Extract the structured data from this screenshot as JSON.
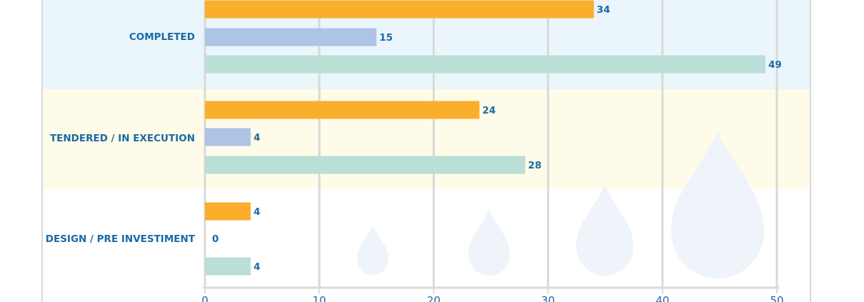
{
  "chart_data": {
    "type": "bar",
    "orientation": "horizontal",
    "categories": [
      "COMPLETED",
      "TENDERED / IN EXECUTION",
      "DESIGN / PRE INVESTIMENT"
    ],
    "series": [
      {
        "values": [
          34,
          24,
          4
        ],
        "color": "#fbae2c"
      },
      {
        "values": [
          15,
          4,
          0
        ],
        "color": "#aec4e5"
      },
      {
        "values": [
          49,
          28,
          4
        ],
        "color": "#b9dfd6"
      }
    ],
    "xlim": [
      0,
      50
    ],
    "xticks": [
      0,
      10,
      20,
      30,
      40,
      50
    ],
    "grid": true,
    "band_colors": [
      "#eaf5fc",
      "#fefbe8",
      "#ffffff"
    ],
    "label_color": "#1a6aa6",
    "axis_color": "#d9d9d9",
    "decoration": "water-drop-icons"
  }
}
